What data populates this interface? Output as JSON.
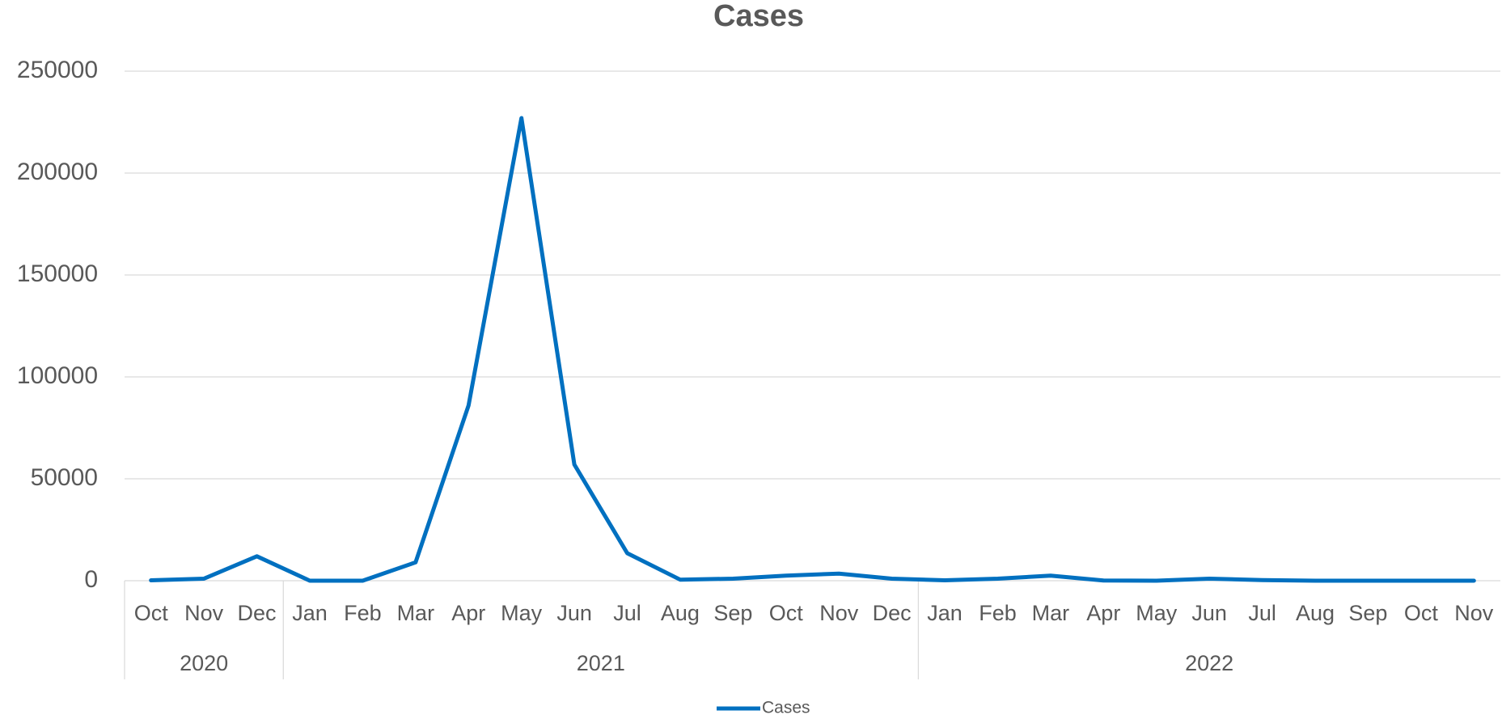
{
  "chart_data": {
    "type": "line",
    "title": "Cases",
    "categories": [
      "Oct",
      "Nov",
      "Dec",
      "Jan",
      "Feb",
      "Mar",
      "Apr",
      "May",
      "Jun",
      "Jul",
      "Aug",
      "Sep",
      "Oct",
      "Nov",
      "Dec",
      "Jan",
      "Feb",
      "Mar",
      "Apr",
      "May",
      "Jun",
      "Jul",
      "Aug",
      "Sep",
      "Oct",
      "Nov"
    ],
    "years": [
      "2020",
      "2020",
      "2020",
      "2021",
      "2021",
      "2021",
      "2021",
      "2021",
      "2021",
      "2021",
      "2021",
      "2021",
      "2021",
      "2021",
      "2021",
      "2022",
      "2022",
      "2022",
      "2022",
      "2022",
      "2022",
      "2022",
      "2022",
      "2022",
      "2022",
      "2022"
    ],
    "series": [
      {
        "name": "Cases",
        "color": "#0070c0",
        "values": [
          200,
          1000,
          12000,
          0,
          0,
          9000,
          86000,
          227000,
          57000,
          13500,
          500,
          1000,
          2500,
          3500,
          1000,
          200,
          1000,
          2500,
          100,
          0,
          1000,
          300,
          0,
          0,
          0,
          0
        ]
      }
    ],
    "ylim": [
      0,
      250000
    ],
    "yticks": [
      0,
      50000,
      100000,
      150000,
      200000,
      250000
    ],
    "grid": true,
    "legend": "bottom"
  }
}
